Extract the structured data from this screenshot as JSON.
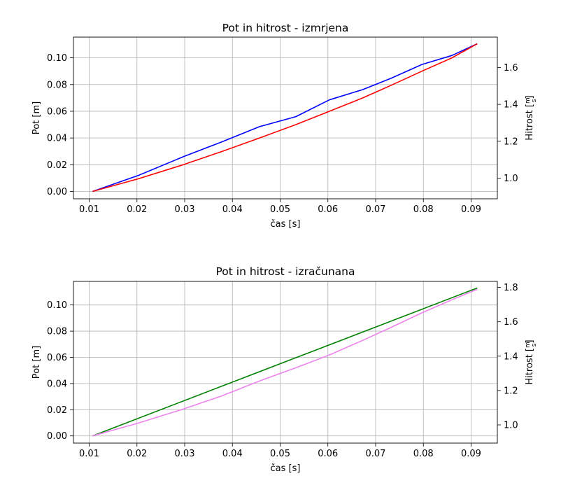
{
  "chart_data": [
    {
      "type": "line",
      "title": "Pot in hitrost - izmrjena",
      "xlabel": "čas [s]",
      "ylabel": "Pot [m]",
      "y2label": "Hitrost [m/s]",
      "xlim": [
        0.0067,
        0.0955
      ],
      "ylim": [
        -0.0055,
        0.1155
      ],
      "y2lim": [
        0.888,
        1.765
      ],
      "xticks": [
        "0.01",
        "0.02",
        "0.03",
        "0.04",
        "0.05",
        "0.06",
        "0.07",
        "0.08",
        "0.09"
      ],
      "yticks": [
        "0.00",
        "0.02",
        "0.04",
        "0.06",
        "0.08",
        "0.10"
      ],
      "y2ticks": [
        "1.0",
        "1.2",
        "1.4",
        "1.6"
      ],
      "grid": true,
      "series": [
        {
          "axis": "left",
          "color": "#0000ff",
          "x": [
            0.0107,
            0.0203,
            0.0297,
            0.0377,
            0.0457,
            0.0533,
            0.0603,
            0.0673,
            0.0733,
            0.0797,
            0.086,
            0.0913
          ],
          "y": [
            0.0,
            0.012,
            0.026,
            0.037,
            0.0485,
            0.056,
            0.0685,
            0.0762,
            0.0848,
            0.095,
            0.1018,
            0.1105
          ]
        },
        {
          "axis": "left",
          "color": "#ff0000",
          "x": [
            0.0107,
            0.0203,
            0.0297,
            0.0377,
            0.0457,
            0.0533,
            0.0603,
            0.0673,
            0.0733,
            0.0797,
            0.086,
            0.0913
          ],
          "y": [
            0.0,
            0.0095,
            0.02,
            0.0298,
            0.04,
            0.05,
            0.06,
            0.07,
            0.0795,
            0.09,
            0.1,
            0.1105
          ]
        }
      ]
    },
    {
      "type": "line",
      "title": "Pot in hitrost - izračunana",
      "xlabel": "čas [s]",
      "ylabel": "Pot [m]",
      "y2label": "Hitrost [m/s]",
      "xlim": [
        0.0067,
        0.0955
      ],
      "ylim": [
        -0.0055,
        0.118
      ],
      "y2lim": [
        0.894,
        1.835
      ],
      "xticks": [
        "0.01",
        "0.02",
        "0.03",
        "0.04",
        "0.05",
        "0.06",
        "0.07",
        "0.08",
        "0.09"
      ],
      "yticks": [
        "0.00",
        "0.02",
        "0.04",
        "0.06",
        "0.08",
        "0.10"
      ],
      "y2ticks": [
        "1.0",
        "1.2",
        "1.4",
        "1.6",
        "1.8"
      ],
      "grid": true,
      "series": [
        {
          "axis": "left",
          "color": "#008000",
          "x": [
            0.0107,
            0.0913
          ],
          "y": [
            0.0,
            0.113
          ]
        },
        {
          "axis": "left",
          "color": "#ee82ee",
          "x": [
            0.0107,
            0.0203,
            0.0297,
            0.0377,
            0.0457,
            0.0533,
            0.0603,
            0.0673,
            0.0733,
            0.0797,
            0.086,
            0.0913
          ],
          "y": [
            0.0,
            0.0098,
            0.0205,
            0.0305,
            0.042,
            0.052,
            0.0618,
            0.073,
            0.083,
            0.094,
            0.104,
            0.112
          ]
        }
      ]
    }
  ]
}
